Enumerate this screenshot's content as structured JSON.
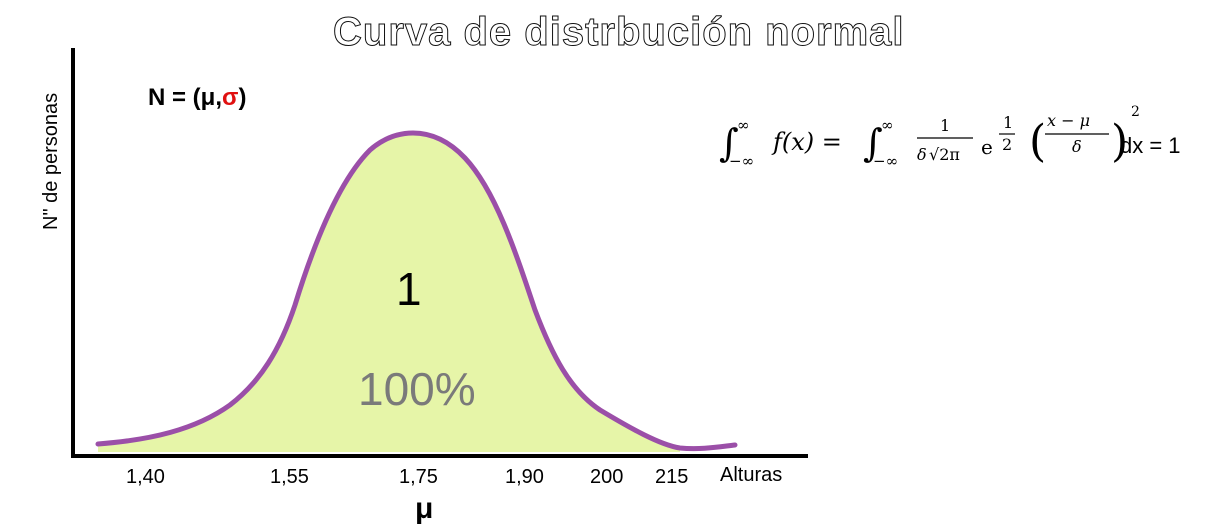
{
  "title": "Curva de distrbución normal",
  "y_axis_label": "N\" de personas",
  "x_axis_label": "Alturas",
  "notation": {
    "prefix": "N = (μ,",
    "sigma": "σ",
    "suffix": ")"
  },
  "area_value": "1",
  "area_percent": "100%",
  "x_ticks": [
    "1,40",
    "1,55",
    "1,75",
    "1,90",
    "200",
    "215"
  ],
  "mean_symbol": "μ",
  "formula": {
    "int1_upper": "∞",
    "int1_lower": "−∞",
    "fx": "f(x) =",
    "int2_upper": "∞",
    "int2_lower": "−∞",
    "frac_num": "1",
    "frac_den_a": "δ",
    "frac_den_b": "√2π",
    "base": "e",
    "exp_num": "1",
    "exp_den": "2",
    "inner_num": "x −  μ",
    "inner_den": "δ",
    "power": "2",
    "tail": "dx = 1"
  },
  "colors": {
    "curve": "#9b4fa8",
    "fill": "#e6f5a8",
    "axis": "#000000",
    "sigma": "#e01010",
    "percent": "#7a7a7a"
  }
}
